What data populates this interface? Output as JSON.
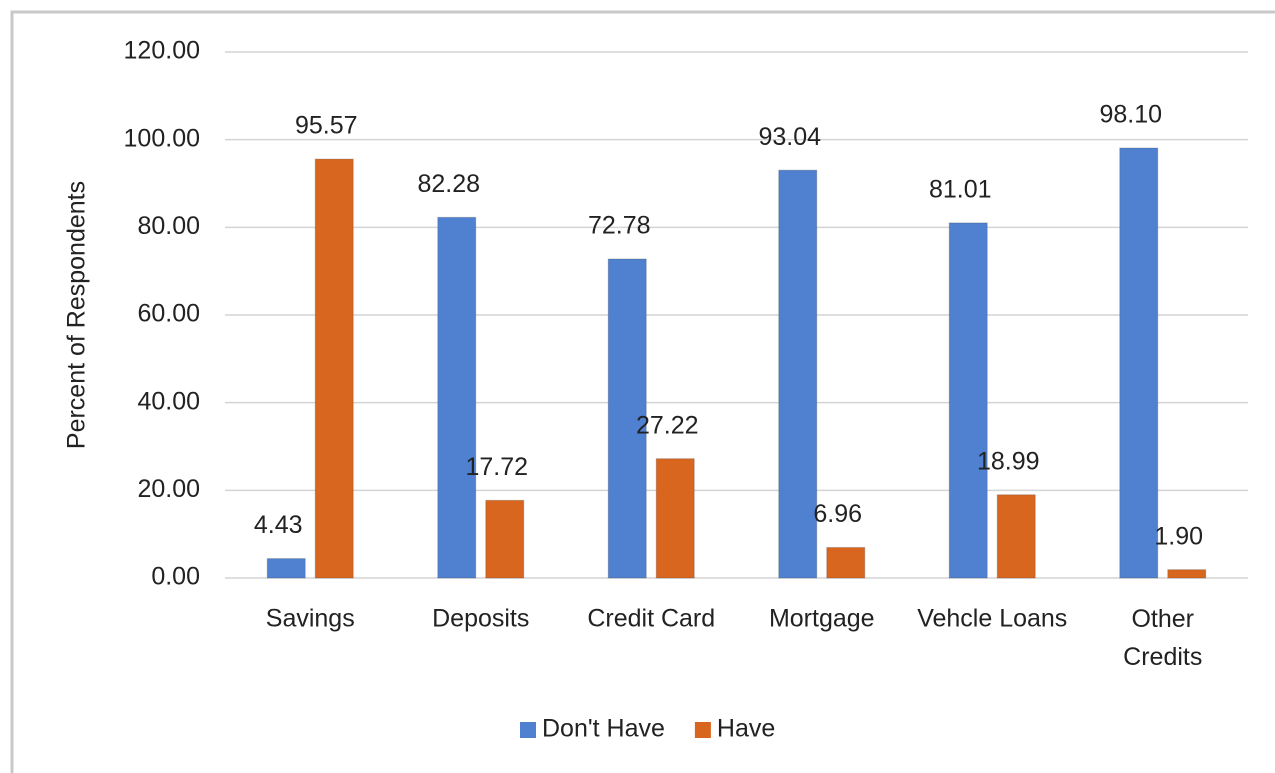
{
  "chart_data": {
    "type": "bar",
    "y_label": "Percent of Respondents",
    "categories": [
      "Savings",
      "Deposits",
      "Credit Card",
      "Mortgage",
      "Vehcle Loans",
      "Other Credits"
    ],
    "series": [
      {
        "name": "Don't Have",
        "color": "#4f81d0",
        "values": [
          4.43,
          82.28,
          72.78,
          93.04,
          81.01,
          98.1
        ],
        "value_labels": [
          "4.43",
          "82.28",
          "72.78",
          "93.04",
          "81.01",
          "98.10"
        ]
      },
      {
        "name": "Have",
        "color": "#d9661f",
        "values": [
          95.57,
          17.72,
          27.22,
          6.96,
          18.99,
          1.9
        ],
        "value_labels": [
          "95.57",
          "17.72",
          "27.22",
          "6.96",
          "18.99",
          "1.90"
        ]
      }
    ],
    "ylim": [
      0,
      120
    ],
    "yticks": [
      {
        "value": 0,
        "label": "0.00"
      },
      {
        "value": 20,
        "label": "20.00"
      },
      {
        "value": 40,
        "label": "40.00"
      },
      {
        "value": 60,
        "label": "60.00"
      },
      {
        "value": 80,
        "label": "80.00"
      },
      {
        "value": 100,
        "label": "100.00"
      },
      {
        "value": 120,
        "label": "120.00"
      }
    ],
    "grid": true,
    "legend": "bottom"
  }
}
